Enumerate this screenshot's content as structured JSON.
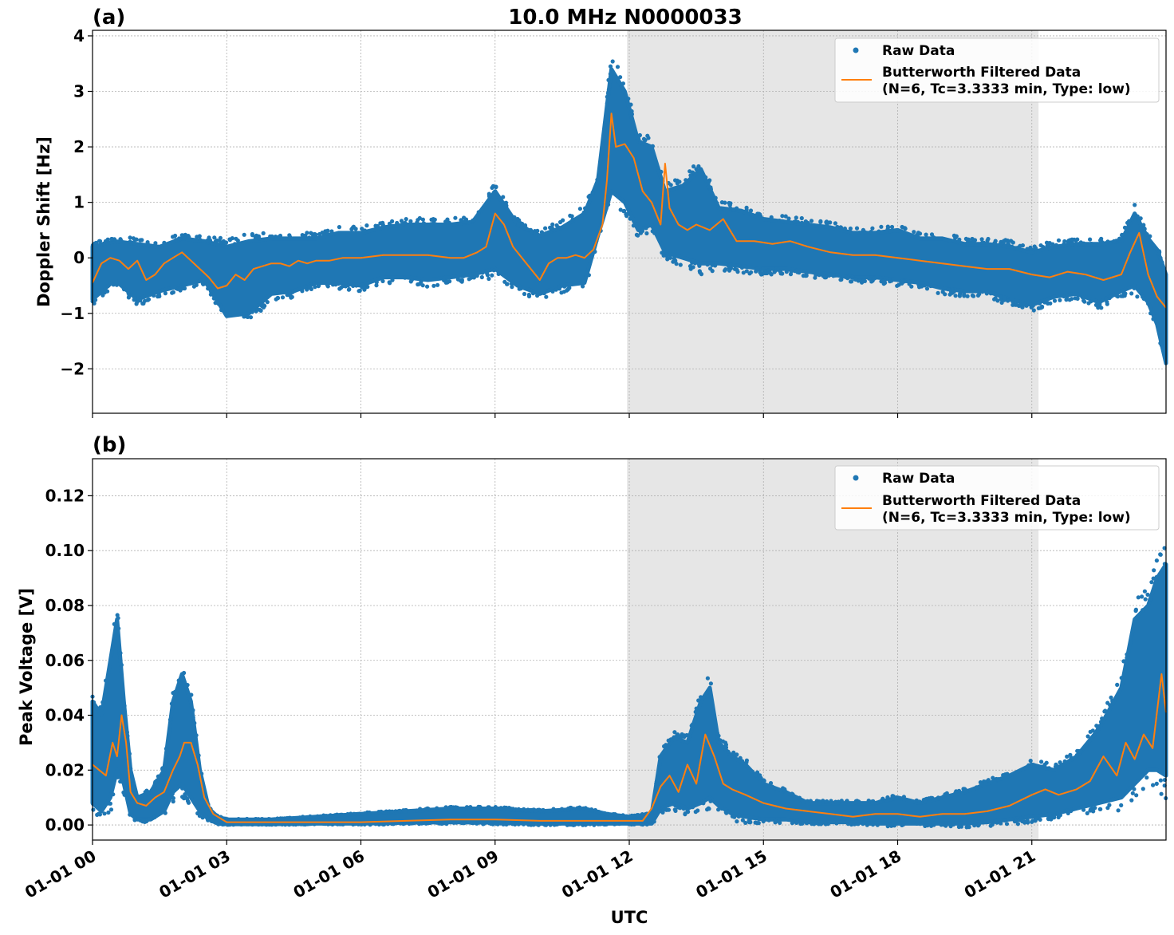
{
  "figure": {
    "title": "10.0 MHz N0000033",
    "xlabel": "UTC",
    "colors": {
      "raw": "#1f77b4",
      "filtered": "#ff7f0e",
      "shade": "#e6e6e6",
      "grid": "#b0b0b0"
    },
    "legend": {
      "raw_label": "Raw Data",
      "filtered_label_line1": "Butterworth Filtered Data",
      "filtered_label_line2": "(N=6, Tc=3.3333 min, Type: low)",
      "placement": "upper right"
    },
    "shaded_interval_hours": [
      11.95,
      21.15
    ],
    "x_range_hours": [
      0,
      24
    ],
    "x_ticks": [
      {
        "hour": 0,
        "label": "01-01 00"
      },
      {
        "hour": 3,
        "label": "01-01 03"
      },
      {
        "hour": 6,
        "label": "01-01 06"
      },
      {
        "hour": 9,
        "label": "01-01 09"
      },
      {
        "hour": 12,
        "label": "01-01 12"
      },
      {
        "hour": 15,
        "label": "01-01 15"
      },
      {
        "hour": 18,
        "label": "01-01 18"
      },
      {
        "hour": 21,
        "label": "01-01 21"
      }
    ]
  },
  "chart_data": [
    {
      "type": "scatter",
      "panel_label": "(a)",
      "ylabel": "Doppler Shift [Hz]",
      "ylim": [
        -2.8,
        4.1
      ],
      "y_ticks": [
        {
          "value": 4,
          "label": "4"
        },
        {
          "value": 3,
          "label": "3"
        },
        {
          "value": 2,
          "label": "2"
        },
        {
          "value": 1,
          "label": "1"
        },
        {
          "value": 0,
          "label": "0"
        },
        {
          "value": -1,
          "label": "−1"
        },
        {
          "value": -2,
          "label": "−2"
        }
      ],
      "grid": true,
      "series": [
        {
          "name": "Raw Data",
          "kind": "band",
          "x": [
            0,
            0.5,
            1,
            1.5,
            2,
            2.5,
            3,
            3.5,
            4,
            4.5,
            5,
            5.5,
            6,
            6.5,
            7,
            7.5,
            8,
            8.5,
            9,
            9.5,
            10,
            10.5,
            11,
            11.3,
            11.6,
            11.9,
            12.2,
            12.5,
            12.8,
            13.2,
            13.6,
            14,
            14.5,
            15,
            15.5,
            16,
            16.5,
            17,
            17.5,
            18,
            18.5,
            19,
            19.5,
            20,
            20.5,
            21,
            21.5,
            22,
            22.5,
            23,
            23.3,
            23.6,
            23.8,
            24
          ],
          "y_low": [
            -0.75,
            -0.4,
            -0.75,
            -0.6,
            -0.5,
            -0.4,
            -1.05,
            -1.0,
            -0.65,
            -0.6,
            -0.45,
            -0.45,
            -0.5,
            -0.35,
            -0.35,
            -0.4,
            -0.35,
            -0.3,
            -0.2,
            -0.5,
            -0.65,
            -0.5,
            -0.45,
            0.4,
            1.2,
            1.0,
            0.5,
            0.6,
            0.1,
            0.0,
            -0.1,
            -0.1,
            -0.15,
            -0.2,
            -0.2,
            -0.25,
            -0.3,
            -0.35,
            -0.35,
            -0.4,
            -0.45,
            -0.55,
            -0.6,
            -0.6,
            -0.75,
            -0.85,
            -0.7,
            -0.65,
            -0.8,
            -0.6,
            -0.5,
            -0.8,
            -1.2,
            -1.9
          ],
          "y_high": [
            0.2,
            0.3,
            0.25,
            0.2,
            0.35,
            0.3,
            0.2,
            0.3,
            0.35,
            0.35,
            0.35,
            0.45,
            0.45,
            0.55,
            0.6,
            0.6,
            0.6,
            0.65,
            1.2,
            0.6,
            0.4,
            0.55,
            0.8,
            1.4,
            3.4,
            3.0,
            2.1,
            2.0,
            1.2,
            1.3,
            1.6,
            0.9,
            0.85,
            0.7,
            0.65,
            0.6,
            0.55,
            0.45,
            0.45,
            0.5,
            0.35,
            0.35,
            0.25,
            0.25,
            0.2,
            0.1,
            0.2,
            0.25,
            0.25,
            0.3,
            0.8,
            0.35,
            0.15,
            -0.3
          ]
        },
        {
          "name": "Butterworth Filtered Data",
          "kind": "line",
          "x": [
            0,
            0.2,
            0.4,
            0.6,
            0.8,
            1,
            1.2,
            1.4,
            1.6,
            1.8,
            2,
            2.2,
            2.4,
            2.6,
            2.8,
            3,
            3.2,
            3.4,
            3.6,
            3.8,
            4,
            4.2,
            4.4,
            4.6,
            4.8,
            5,
            5.3,
            5.6,
            6,
            6.5,
            7,
            7.5,
            8,
            8.3,
            8.6,
            8.8,
            9,
            9.2,
            9.4,
            9.6,
            9.8,
            10,
            10.2,
            10.4,
            10.6,
            10.8,
            11,
            11.2,
            11.4,
            11.5,
            11.6,
            11.7,
            11.9,
            12.1,
            12.3,
            12.5,
            12.7,
            12.8,
            12.9,
            13.1,
            13.3,
            13.5,
            13.8,
            14.1,
            14.4,
            14.8,
            15.2,
            15.6,
            16,
            16.5,
            17,
            17.5,
            18,
            18.5,
            19,
            19.5,
            20,
            20.5,
            21,
            21.4,
            21.8,
            22.2,
            22.6,
            23,
            23.2,
            23.4,
            23.6,
            23.8,
            24
          ],
          "y": [
            -0.45,
            -0.1,
            0.0,
            -0.05,
            -0.2,
            -0.05,
            -0.4,
            -0.3,
            -0.1,
            0.0,
            0.1,
            -0.05,
            -0.2,
            -0.35,
            -0.55,
            -0.5,
            -0.3,
            -0.4,
            -0.2,
            -0.15,
            -0.1,
            -0.1,
            -0.15,
            -0.05,
            -0.1,
            -0.05,
            -0.05,
            0.0,
            0.0,
            0.05,
            0.05,
            0.05,
            0.0,
            0.0,
            0.1,
            0.2,
            0.8,
            0.6,
            0.2,
            0.0,
            -0.2,
            -0.4,
            -0.1,
            0.0,
            0.0,
            0.05,
            0.0,
            0.15,
            0.6,
            1.4,
            2.6,
            2.0,
            2.05,
            1.8,
            1.2,
            1.0,
            0.6,
            1.7,
            0.9,
            0.6,
            0.5,
            0.6,
            0.5,
            0.7,
            0.3,
            0.3,
            0.25,
            0.3,
            0.2,
            0.1,
            0.05,
            0.05,
            0.0,
            -0.05,
            -0.1,
            -0.15,
            -0.2,
            -0.2,
            -0.3,
            -0.35,
            -0.25,
            -0.3,
            -0.4,
            -0.3,
            0.1,
            0.45,
            -0.3,
            -0.7,
            -0.9
          ]
        }
      ]
    },
    {
      "type": "scatter",
      "panel_label": "(b)",
      "ylabel": "Peak Voltage [V]",
      "ylim": [
        -0.0055,
        0.1335
      ],
      "y_ticks": [
        {
          "value": 0.12,
          "label": "0.12"
        },
        {
          "value": 0.1,
          "label": "0.10"
        },
        {
          "value": 0.08,
          "label": "0.08"
        },
        {
          "value": 0.06,
          "label": "0.06"
        },
        {
          "value": 0.04,
          "label": "0.04"
        },
        {
          "value": 0.02,
          "label": "0.02"
        },
        {
          "value": 0.0,
          "label": "0.00"
        }
      ],
      "grid": true,
      "series": [
        {
          "name": "Raw Data",
          "kind": "band",
          "x": [
            0,
            0.2,
            0.4,
            0.55,
            0.7,
            0.85,
            1,
            1.3,
            1.6,
            1.8,
            2,
            2.2,
            2.4,
            2.6,
            2.8,
            3,
            4,
            5,
            6,
            7,
            8,
            9,
            10,
            11,
            11.5,
            12,
            12.5,
            12.7,
            13,
            13.3,
            13.6,
            13.8,
            14,
            14.3,
            14.6,
            15,
            15.5,
            16,
            16.5,
            17,
            17.5,
            18,
            18.5,
            19,
            19.5,
            20,
            20.5,
            21,
            21.5,
            22,
            22.5,
            23,
            23.3,
            23.6,
            23.8,
            24
          ],
          "y_low": [
            0.008,
            0.005,
            0.01,
            0.02,
            0.015,
            0.004,
            0.002,
            0.002,
            0.005,
            0.012,
            0.015,
            0.01,
            0.005,
            0.002,
            0.0005,
            0.0003,
            0.0003,
            0.0005,
            0.0005,
            0.0008,
            0.001,
            0.0008,
            0.0005,
            0.0005,
            0.0005,
            0.0005,
            0.0005,
            0.006,
            0.008,
            0.006,
            0.008,
            0.01,
            0.007,
            0.004,
            0.003,
            0.002,
            0.002,
            0.001,
            0.001,
            0.001,
            0.0005,
            0.0005,
            0.0005,
            0.0005,
            0.0005,
            0.001,
            0.002,
            0.003,
            0.004,
            0.006,
            0.008,
            0.01,
            0.015,
            0.02,
            0.02,
            0.018
          ],
          "y_high": [
            0.045,
            0.04,
            0.06,
            0.075,
            0.045,
            0.02,
            0.01,
            0.012,
            0.02,
            0.045,
            0.055,
            0.045,
            0.02,
            0.006,
            0.003,
            0.002,
            0.002,
            0.003,
            0.004,
            0.005,
            0.006,
            0.006,
            0.005,
            0.006,
            0.004,
            0.003,
            0.004,
            0.025,
            0.032,
            0.03,
            0.045,
            0.05,
            0.03,
            0.025,
            0.022,
            0.015,
            0.012,
            0.008,
            0.008,
            0.008,
            0.008,
            0.01,
            0.008,
            0.01,
            0.012,
            0.015,
            0.018,
            0.022,
            0.02,
            0.025,
            0.035,
            0.05,
            0.075,
            0.08,
            0.09,
            0.095
          ]
        },
        {
          "name": "Butterworth Filtered Data",
          "kind": "line",
          "x": [
            0,
            0.15,
            0.3,
            0.45,
            0.55,
            0.65,
            0.75,
            0.85,
            1,
            1.2,
            1.4,
            1.6,
            1.8,
            1.95,
            2.05,
            2.2,
            2.35,
            2.5,
            2.7,
            2.9,
            3,
            3.5,
            4,
            5,
            6,
            7,
            8,
            9,
            10,
            11,
            11.8,
            12.3,
            12.5,
            12.7,
            12.9,
            13.1,
            13.3,
            13.5,
            13.7,
            13.9,
            14.1,
            14.3,
            14.6,
            15,
            15.5,
            16,
            16.5,
            17,
            17.5,
            18,
            18.5,
            19,
            19.5,
            20,
            20.5,
            21,
            21.3,
            21.6,
            22,
            22.3,
            22.6,
            22.9,
            23.1,
            23.3,
            23.5,
            23.7,
            23.9,
            24
          ],
          "y": [
            0.022,
            0.02,
            0.018,
            0.03,
            0.025,
            0.04,
            0.03,
            0.012,
            0.008,
            0.007,
            0.01,
            0.012,
            0.02,
            0.025,
            0.03,
            0.03,
            0.022,
            0.01,
            0.004,
            0.002,
            0.001,
            0.001,
            0.001,
            0.001,
            0.001,
            0.0015,
            0.002,
            0.002,
            0.0015,
            0.0015,
            0.0015,
            0.0015,
            0.006,
            0.014,
            0.018,
            0.012,
            0.022,
            0.015,
            0.033,
            0.025,
            0.015,
            0.013,
            0.011,
            0.008,
            0.006,
            0.005,
            0.004,
            0.003,
            0.004,
            0.004,
            0.003,
            0.004,
            0.004,
            0.005,
            0.007,
            0.011,
            0.013,
            0.011,
            0.013,
            0.016,
            0.025,
            0.018,
            0.03,
            0.024,
            0.033,
            0.028,
            0.055,
            0.041
          ]
        }
      ]
    }
  ]
}
